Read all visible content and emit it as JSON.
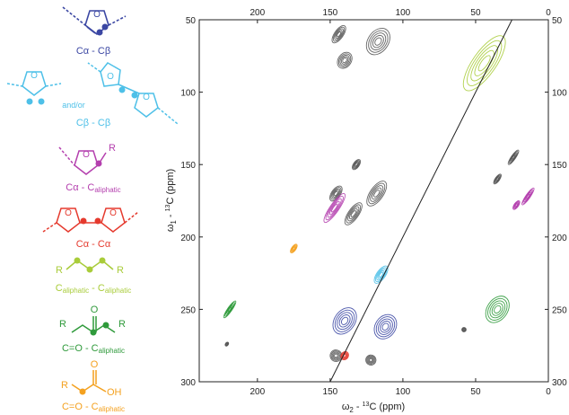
{
  "legend": [
    {
      "label_main": "Cα - Cβ",
      "color": "#3b47a3"
    },
    {
      "label_main": "Cβ - Cβ",
      "and_or": "and/or",
      "color": "#4ec0e8"
    },
    {
      "label_main": "Cα - C",
      "label_sub": "aliphatic",
      "color": "#b43fae"
    },
    {
      "label_main": "Cα - Cα",
      "color": "#e53a2e"
    },
    {
      "label_main": "C",
      "label_sub": "aliphatic",
      "label_mid": " - C",
      "label_sub2": "aliphatic",
      "color": "#a9cc3a"
    },
    {
      "label_main": "C=O - C",
      "label_sub": "aliphatic",
      "color": "#2f9a3b",
      "atom_r1": "R",
      "atom_o": "O",
      "atom_r2": "R"
    },
    {
      "label_main": "C=O - C",
      "label_sub": "aliphatic",
      "color": "#f4a11f",
      "atom_r1": "R",
      "atom_o": "O",
      "atom_oh": "OH"
    }
  ],
  "atoms": {
    "furan_o": "O",
    "r": "R"
  },
  "chart_data": {
    "type": "heatmap",
    "x_axis": {
      "label_main": "ω",
      "label_sub": "2",
      "label_rest": " - ",
      "label_sup": "13",
      "label_end": "C  (ppm)",
      "range": [
        240,
        0
      ],
      "ticks": [
        "200",
        "150",
        "100",
        "50",
        "0"
      ],
      "tick_values": [
        200,
        150,
        100,
        50,
        0
      ]
    },
    "y_axis": {
      "label_main": "ω",
      "label_sub": "1",
      "label_rest": " - ",
      "label_sup": "13",
      "label_end": "C  (ppm)",
      "range": [
        50,
        300
      ],
      "ticks": [
        "50",
        "100",
        "150",
        "200",
        "250",
        "300"
      ],
      "tick_values": [
        50,
        100,
        150,
        200,
        250,
        300
      ]
    },
    "diagonal": [
      [
        150,
        300
      ],
      [
        25,
        50
      ]
    ],
    "peaks": [
      {
        "x": 144,
        "y": 60,
        "w": 6,
        "h": 14,
        "color": "#555555"
      },
      {
        "x": 117,
        "y": 65,
        "w": 14,
        "h": 20,
        "color": "#555555"
      },
      {
        "x": 140,
        "y": 78,
        "w": 9,
        "h": 12,
        "color": "#555555"
      },
      {
        "x": 44,
        "y": 80,
        "w": 16,
        "h": 45,
        "color": "#a9cc3a"
      },
      {
        "x": 146,
        "y": 170,
        "w": 6,
        "h": 12,
        "color": "#555555"
      },
      {
        "x": 118,
        "y": 170,
        "w": 9,
        "h": 20,
        "color": "#555555"
      },
      {
        "x": 134,
        "y": 184,
        "w": 7,
        "h": 18,
        "color": "#555555"
      },
      {
        "x": 147,
        "y": 180,
        "w": 6,
        "h": 24,
        "color": "#b43fae"
      },
      {
        "x": 132,
        "y": 150,
        "w": 4,
        "h": 8,
        "color": "#555555"
      },
      {
        "x": 24,
        "y": 145,
        "w": 3,
        "h": 12,
        "color": "#555555"
      },
      {
        "x": 35,
        "y": 160,
        "w": 3,
        "h": 8,
        "color": "#555555"
      },
      {
        "x": 14,
        "y": 172,
        "w": 3,
        "h": 14,
        "color": "#b43fae"
      },
      {
        "x": 22,
        "y": 178,
        "w": 3,
        "h": 7,
        "color": "#b43fae"
      },
      {
        "x": 175,
        "y": 208,
        "w": 3,
        "h": 7,
        "color": "#f4a11f"
      },
      {
        "x": 115,
        "y": 226,
        "w": 6,
        "h": 14,
        "color": "#4ec0e8"
      },
      {
        "x": 219,
        "y": 250,
        "w": 3,
        "h": 14,
        "color": "#2f9a3b"
      },
      {
        "x": 140,
        "y": 258,
        "w": 14,
        "h": 20,
        "color": "#3b47a3"
      },
      {
        "x": 112,
        "y": 262,
        "w": 14,
        "h": 18,
        "color": "#3b47a3"
      },
      {
        "x": 35,
        "y": 250,
        "w": 14,
        "h": 20,
        "color": "#2f9a3b"
      },
      {
        "x": 146,
        "y": 282,
        "w": 8,
        "h": 8,
        "color": "#555555"
      },
      {
        "x": 140,
        "y": 282,
        "w": 5,
        "h": 6,
        "color": "#e53a2e"
      },
      {
        "x": 122,
        "y": 285,
        "w": 7,
        "h": 7,
        "color": "#555555"
      },
      {
        "x": 58,
        "y": 264,
        "w": 3,
        "h": 3,
        "color": "#555555"
      },
      {
        "x": 221,
        "y": 274,
        "w": 2,
        "h": 3,
        "color": "#555555"
      }
    ]
  }
}
